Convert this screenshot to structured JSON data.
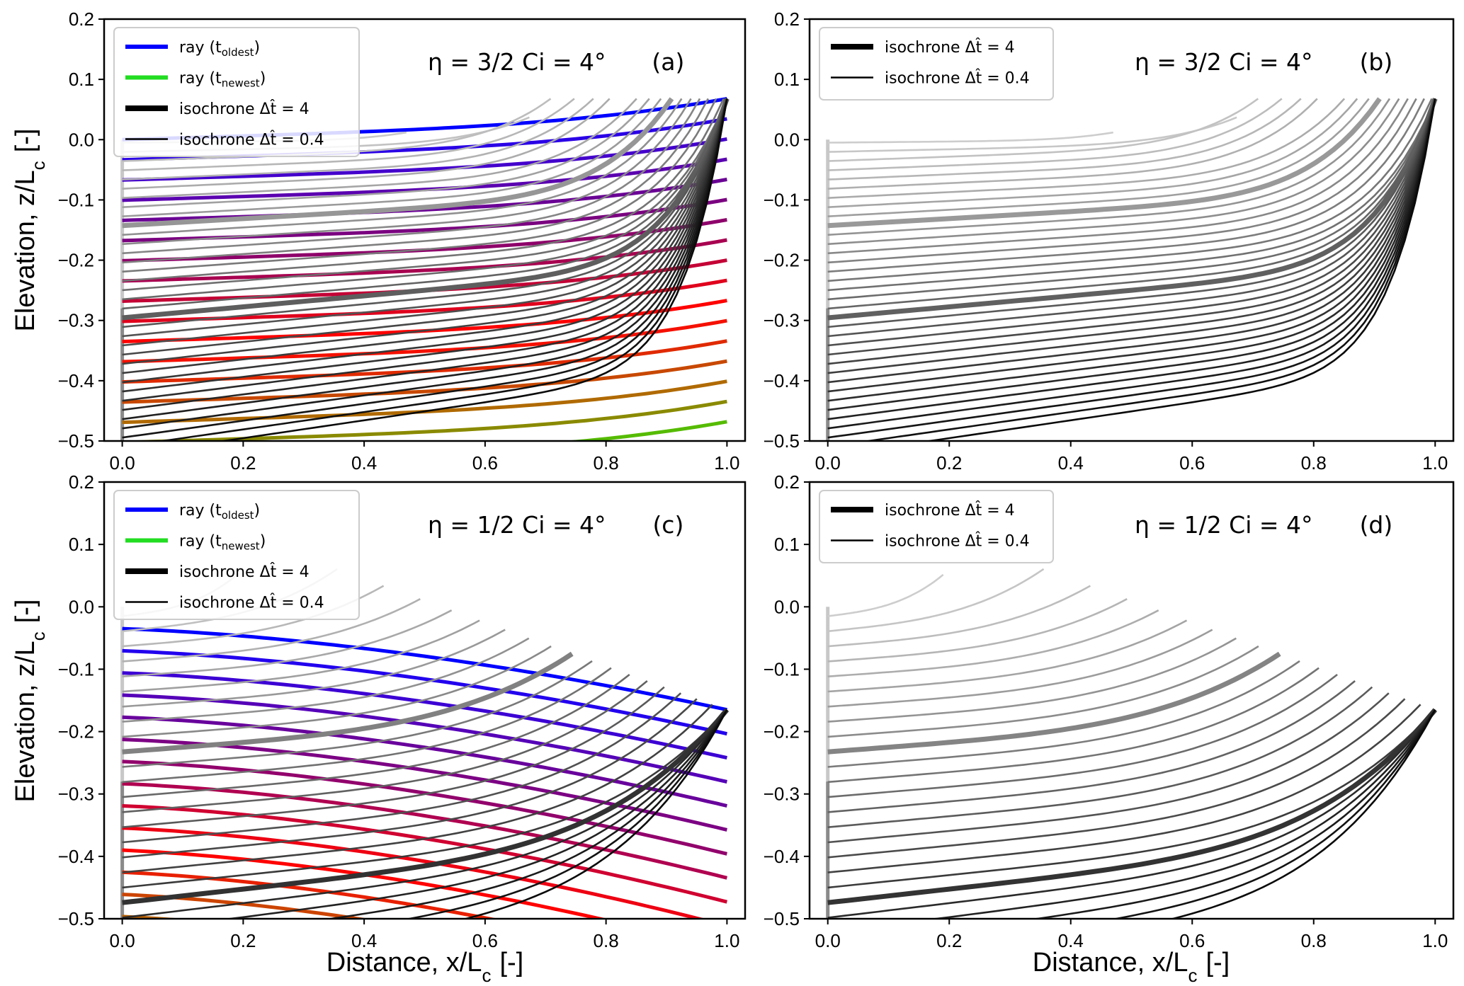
{
  "figure": {
    "ylabel": "Elevation, z/L",
    "ylabel_sub": "c",
    "ylabel_unit": "[-]",
    "xlabel": "Distance, x/L",
    "xlabel_sub": "c",
    "xlabel_unit": "[-]"
  },
  "legend_full": [
    {
      "label": "ray (t",
      "sub": "oldest",
      "tail": ")",
      "color": "#0000ff",
      "style": "thick"
    },
    {
      "label": "ray (t",
      "sub": "newest",
      "tail": ")",
      "color": "#22dd22",
      "style": "thick"
    },
    {
      "label": "isochrone Δt̂ = 4",
      "sub": "",
      "tail": "",
      "color": "#000000",
      "style": "heavy"
    },
    {
      "label": "isochrone Δt̂ = 0.4",
      "sub": "",
      "tail": "",
      "color": "#000000",
      "style": "thin"
    }
  ],
  "legend_iso": [
    {
      "label": "isochrone Δt̂ = 4",
      "color": "#000000",
      "style": "heavy"
    },
    {
      "label": "isochrone Δt̂ = 0.4",
      "color": "#000000",
      "style": "thin"
    }
  ],
  "chart_data": [
    {
      "panel": "a",
      "type": "line",
      "title": "η = 3/2   Ci = 4°",
      "panel_label": "(a)",
      "eta": 1.5,
      "ci_deg": 4,
      "xlim": [
        -0.03,
        1.03
      ],
      "ylim": [
        -0.5,
        0.2
      ],
      "xticks": [
        "0.0",
        "0.2",
        "0.4",
        "0.6",
        "0.8",
        "1.0"
      ],
      "yticks": [
        "0.2",
        "0.1",
        "0.0",
        "-0.1",
        "-0.2",
        "-0.3",
        "-0.4",
        "-0.5"
      ],
      "show_rays": true,
      "rays": {
        "count": 17,
        "z_right_first": 0.068,
        "z_right_step": -0.0335,
        "z_left_first": 0.0,
        "z_left_step": -0.0335,
        "colors": [
          "#0000ff",
          "#2a00e6",
          "#4400cc",
          "#5a00b0",
          "#6a0095",
          "#7a0080",
          "#8e006a",
          "#a80050",
          "#c40035",
          "#e0001c",
          "#ff0000",
          "#f51000",
          "#e02a00",
          "#c84800",
          "#b06a00",
          "#8a8a00",
          "#55bb00"
        ]
      },
      "isochrones": {
        "count": 35,
        "top_z": 0.068,
        "bottom_left_z": -0.5,
        "tip_x": 1.0,
        "heavy_indices": [
          9,
          19
        ]
      },
      "legend": "full"
    },
    {
      "panel": "b",
      "type": "line",
      "title": "η = 3/2   Ci = 4°",
      "panel_label": "(b)",
      "eta": 1.5,
      "ci_deg": 4,
      "xlim": [
        -0.03,
        1.03
      ],
      "ylim": [
        -0.5,
        0.2
      ],
      "xticks": [
        "0.0",
        "0.2",
        "0.4",
        "0.6",
        "0.8",
        "1.0"
      ],
      "yticks": [
        "0.2",
        "0.1",
        "0.0",
        "-0.1",
        "-0.2",
        "-0.3",
        "-0.4",
        "-0.5"
      ],
      "show_rays": false,
      "isochrones": {
        "count": 35,
        "top_z": 0.068,
        "bottom_left_z": -0.5,
        "tip_x": 1.0,
        "heavy_indices": [
          9,
          19
        ]
      },
      "legend": "iso"
    },
    {
      "panel": "c",
      "type": "line",
      "title": "η = 1/2   Ci = 4°",
      "panel_label": "(c)",
      "eta": 0.5,
      "ci_deg": 4,
      "xlim": [
        -0.03,
        1.03
      ],
      "ylim": [
        -0.5,
        0.2
      ],
      "xticks": [
        "0.0",
        "0.2",
        "0.4",
        "0.6",
        "0.8",
        "1.0"
      ],
      "yticks": [
        "0.2",
        "0.1",
        "0.0",
        "-0.1",
        "-0.2",
        "-0.3",
        "-0.4",
        "-0.5"
      ],
      "show_rays": true,
      "rays": {
        "count": 14,
        "z_right_first": -0.165,
        "z_right_step": -0.0385,
        "z_left_first": -0.035,
        "z_left_step": -0.0355,
        "colors": [
          "#0000ff",
          "#2200ee",
          "#3c00d4",
          "#5500b8",
          "#68009c",
          "#7c0084",
          "#92006c",
          "#b00050",
          "#d00030",
          "#ee0012",
          "#ff0000",
          "#e82000",
          "#cc4400",
          "#b86000"
        ]
      },
      "isochrones": {
        "count": 25,
        "top_z": -0.165,
        "bottom_left_z": -0.5,
        "tip_x": 1.0,
        "heavy_indices": [
          9,
          19
        ]
      },
      "legend": "full"
    },
    {
      "panel": "d",
      "type": "line",
      "title": "η = 1/2   Ci = 4°",
      "panel_label": "(d)",
      "eta": 0.5,
      "ci_deg": 4,
      "xlim": [
        -0.03,
        1.03
      ],
      "ylim": [
        -0.5,
        0.2
      ],
      "xticks": [
        "0.0",
        "0.2",
        "0.4",
        "0.6",
        "0.8",
        "1.0"
      ],
      "yticks": [
        "0.2",
        "0.1",
        "0.0",
        "-0.1",
        "-0.2",
        "-0.3",
        "-0.4",
        "-0.5"
      ],
      "show_rays": false,
      "isochrones": {
        "count": 25,
        "top_z": -0.165,
        "bottom_left_z": -0.5,
        "tip_x": 1.0,
        "heavy_indices": [
          9,
          19
        ]
      },
      "legend": "iso"
    }
  ]
}
